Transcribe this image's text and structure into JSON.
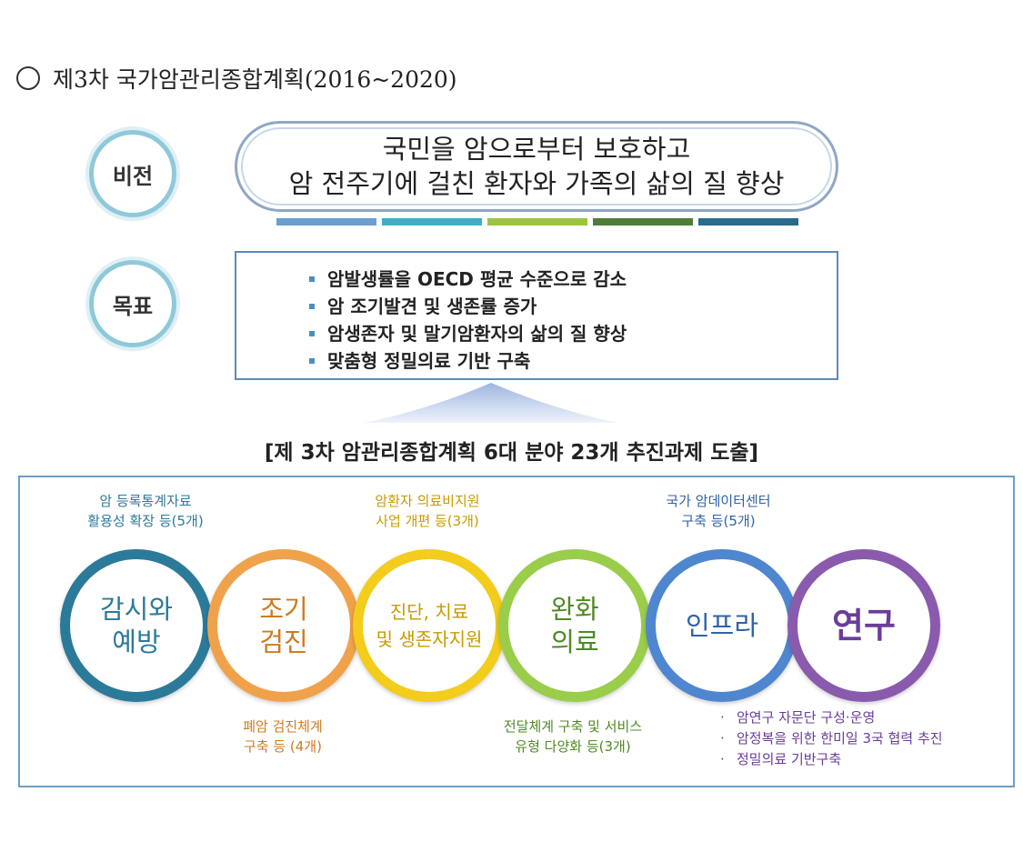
{
  "heading": "제3차  국가암관리종합계획(2016~2020)",
  "vision": {
    "badge": "비전",
    "line1": "국민을 암으로부터 보호하고",
    "line2": "암 전주기에 걸친 환자와 가족의 삶의 질 향상"
  },
  "stripe_colors": [
    "#6a9fd0",
    "#40aec6",
    "#9cc53e",
    "#4f7d38",
    "#2a6a8c"
  ],
  "goal": {
    "badge": "목표",
    "items": [
      "암발생률을 OECD 평균 수준으로 감소",
      "암 조기발견 및 생존률 증가",
      "암생존자 및 말기암환자의 삶의 질 향상",
      "맞춤형 정밀의료 기반 구축"
    ]
  },
  "section_title": "[제 3차 암관리종합계획 6대 분야 23개 추진과제 도출]",
  "areas": [
    {
      "label": "감시와\n예방",
      "color": "#2c7a9a",
      "text_color": "#2c7a9a"
    },
    {
      "label": "조기\n검진",
      "color": "#f0a24a",
      "text_color": "#d07a20"
    },
    {
      "label": "진단, 치료\n및 생존자지원",
      "color": "#f3cc1c",
      "text_color": "#c89a00"
    },
    {
      "label": "완화\n의료",
      "color": "#9acd4a",
      "text_color": "#4f8a24"
    },
    {
      "label": "인프라",
      "color": "#4f86d0",
      "text_color": "#2f63a8"
    },
    {
      "label": "연구",
      "color": "#8a5aad",
      "text_color": "#6a3d9a"
    }
  ],
  "captions": {
    "surveillance": "암 등록통계자료\n활용성 확장 등(5개)",
    "screening": "폐암 검진체계\n구축 등 (4개)",
    "treatment": "암환자 의료비지원\n사업 개편 등(3개)",
    "palliative": "전달체계 구축 및 서비스\n유형 다양화 등(3개)",
    "infra": "국가 암데이터센터\n구축 등(5개)"
  },
  "research_bullets": [
    "암연구 자문단 구성·운영",
    "암정복을 위한 한미일 3국 협력 추진",
    "정밀의료 기반구축"
  ]
}
